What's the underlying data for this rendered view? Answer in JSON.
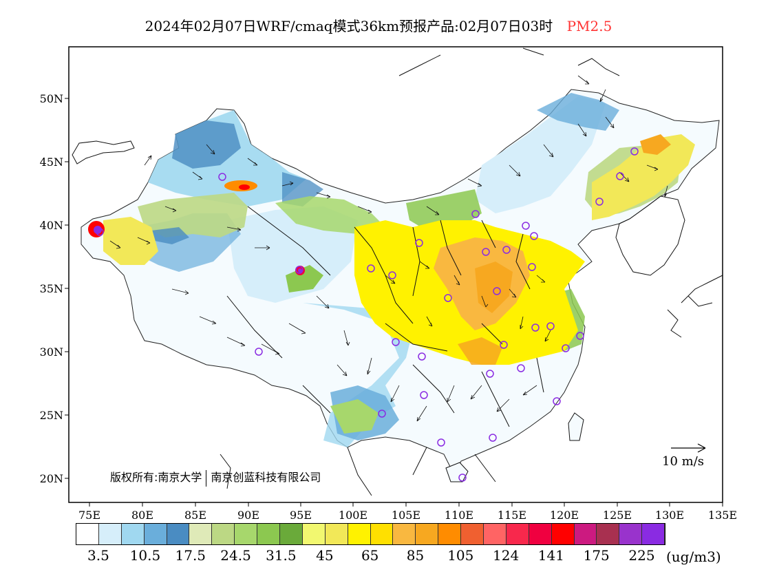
{
  "title": {
    "text": "2024年02月07日WRF/cmaq模式36km预报产品:02月07日03时",
    "variable": "PM2.5",
    "variable_color": "#ff3333"
  },
  "map": {
    "lat_labels": [
      "50N",
      "45N",
      "40N",
      "35N",
      "30N",
      "25N",
      "20N"
    ],
    "lon_labels": [
      "75E",
      "80E",
      "85E",
      "90E",
      "95E",
      "100E",
      "105E",
      "110E",
      "115E",
      "120E",
      "125E",
      "130E",
      "135E"
    ],
    "credit_left": "版权所有:南京大学",
    "credit_right": "南京创蓝科技有限公司",
    "wind_reference": "10 m/s",
    "station_marker_color": "#8a2be2"
  },
  "colorbar": {
    "colors": [
      "#ffffff",
      "#d6eefa",
      "#a0d8f0",
      "#6aaedb",
      "#4a8cc2",
      "#dfeab8",
      "#bcd884",
      "#a7d76c",
      "#8cc850",
      "#6aaa3a",
      "#f2f870",
      "#f2e858",
      "#fff200",
      "#ffe000",
      "#f9b840",
      "#f7a820",
      "#ff8c00",
      "#f06030",
      "#ff6464",
      "#f8284c",
      "#f00040",
      "#ff0000",
      "#cc1a80",
      "#a83050",
      "#9933cc",
      "#8a2be2"
    ],
    "labels": [
      "3.5",
      "10.5",
      "17.5",
      "24.5",
      "31.5",
      "45",
      "65",
      "85",
      "105",
      "124",
      "141",
      "175",
      "225"
    ],
    "unit": "(ug/m3)"
  }
}
